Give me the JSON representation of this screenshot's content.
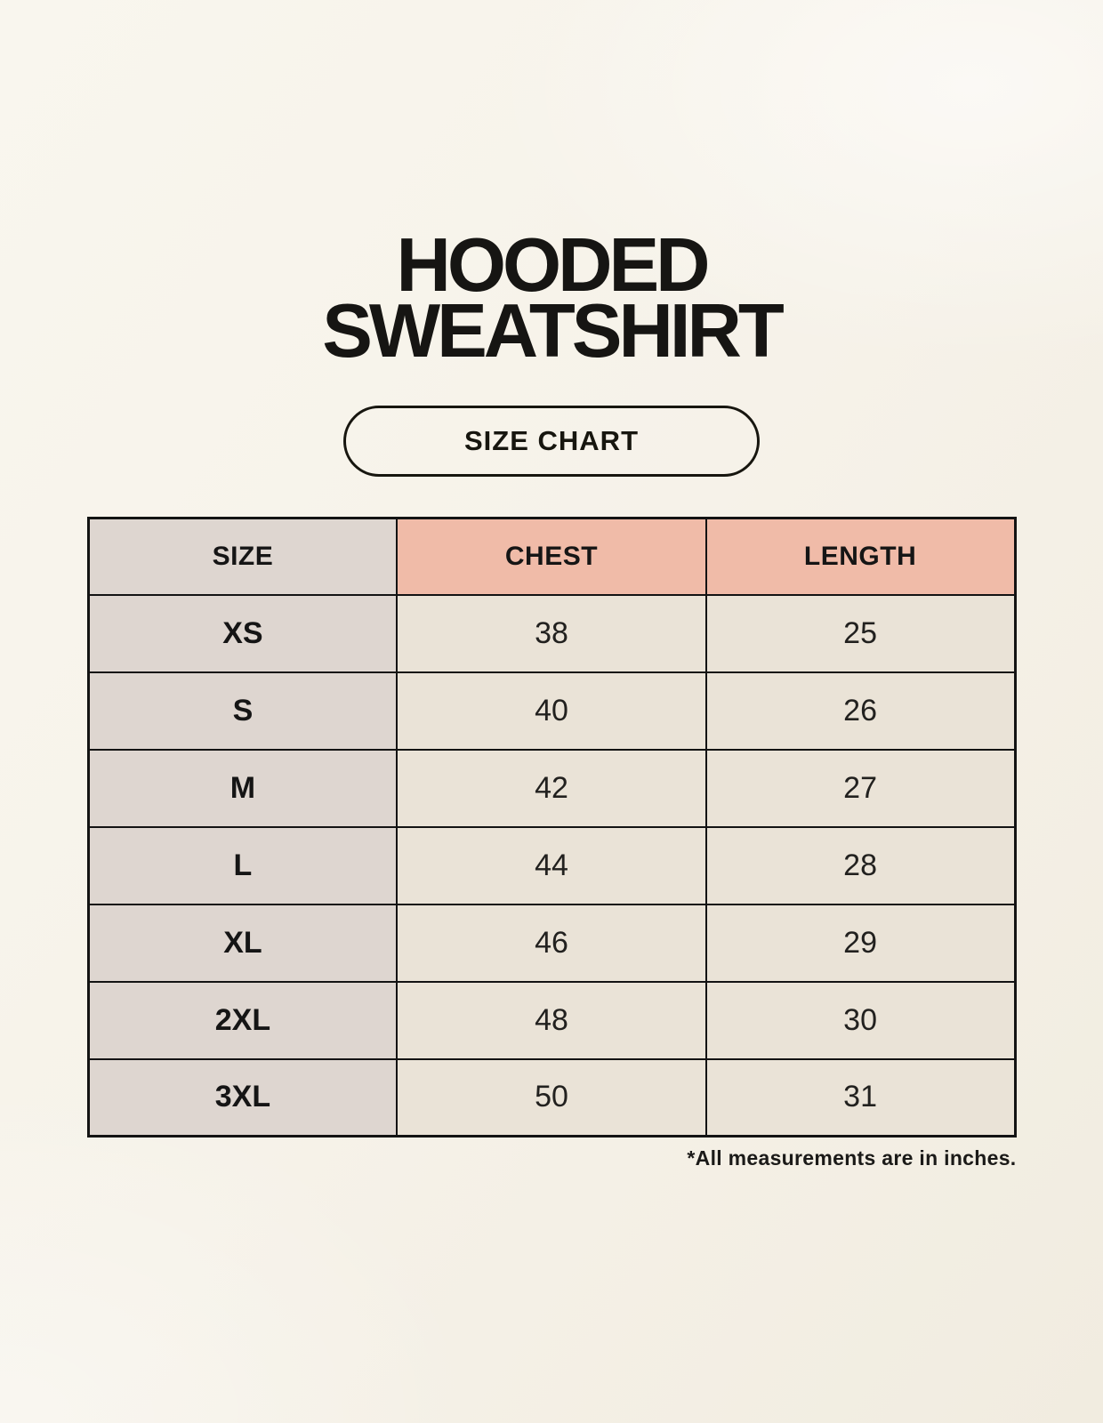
{
  "header": {
    "title_line1": "HOODED",
    "title_line2": "SWEATSHIRT",
    "badge_label": "SIZE CHART"
  },
  "table": {
    "type": "table",
    "columns": [
      "SIZE",
      "CHEST",
      "LENGTH"
    ],
    "rows": [
      [
        "XS",
        "38",
        "25"
      ],
      [
        "S",
        "40",
        "26"
      ],
      [
        "M",
        "42",
        "27"
      ],
      [
        "L",
        "44",
        "28"
      ],
      [
        "XL",
        "46",
        "29"
      ],
      [
        "2XL",
        "48",
        "30"
      ],
      [
        "3XL",
        "50",
        "31"
      ]
    ],
    "footnote": "*All measurements are in inches."
  },
  "colors": {
    "background_cream": "#f6f2e9",
    "accent_salmon": "#f0bba8",
    "neutral_taupe": "#ded6d0",
    "cell_cream": "#eae3d7",
    "border_black": "#131313",
    "text_black": "#161513"
  }
}
